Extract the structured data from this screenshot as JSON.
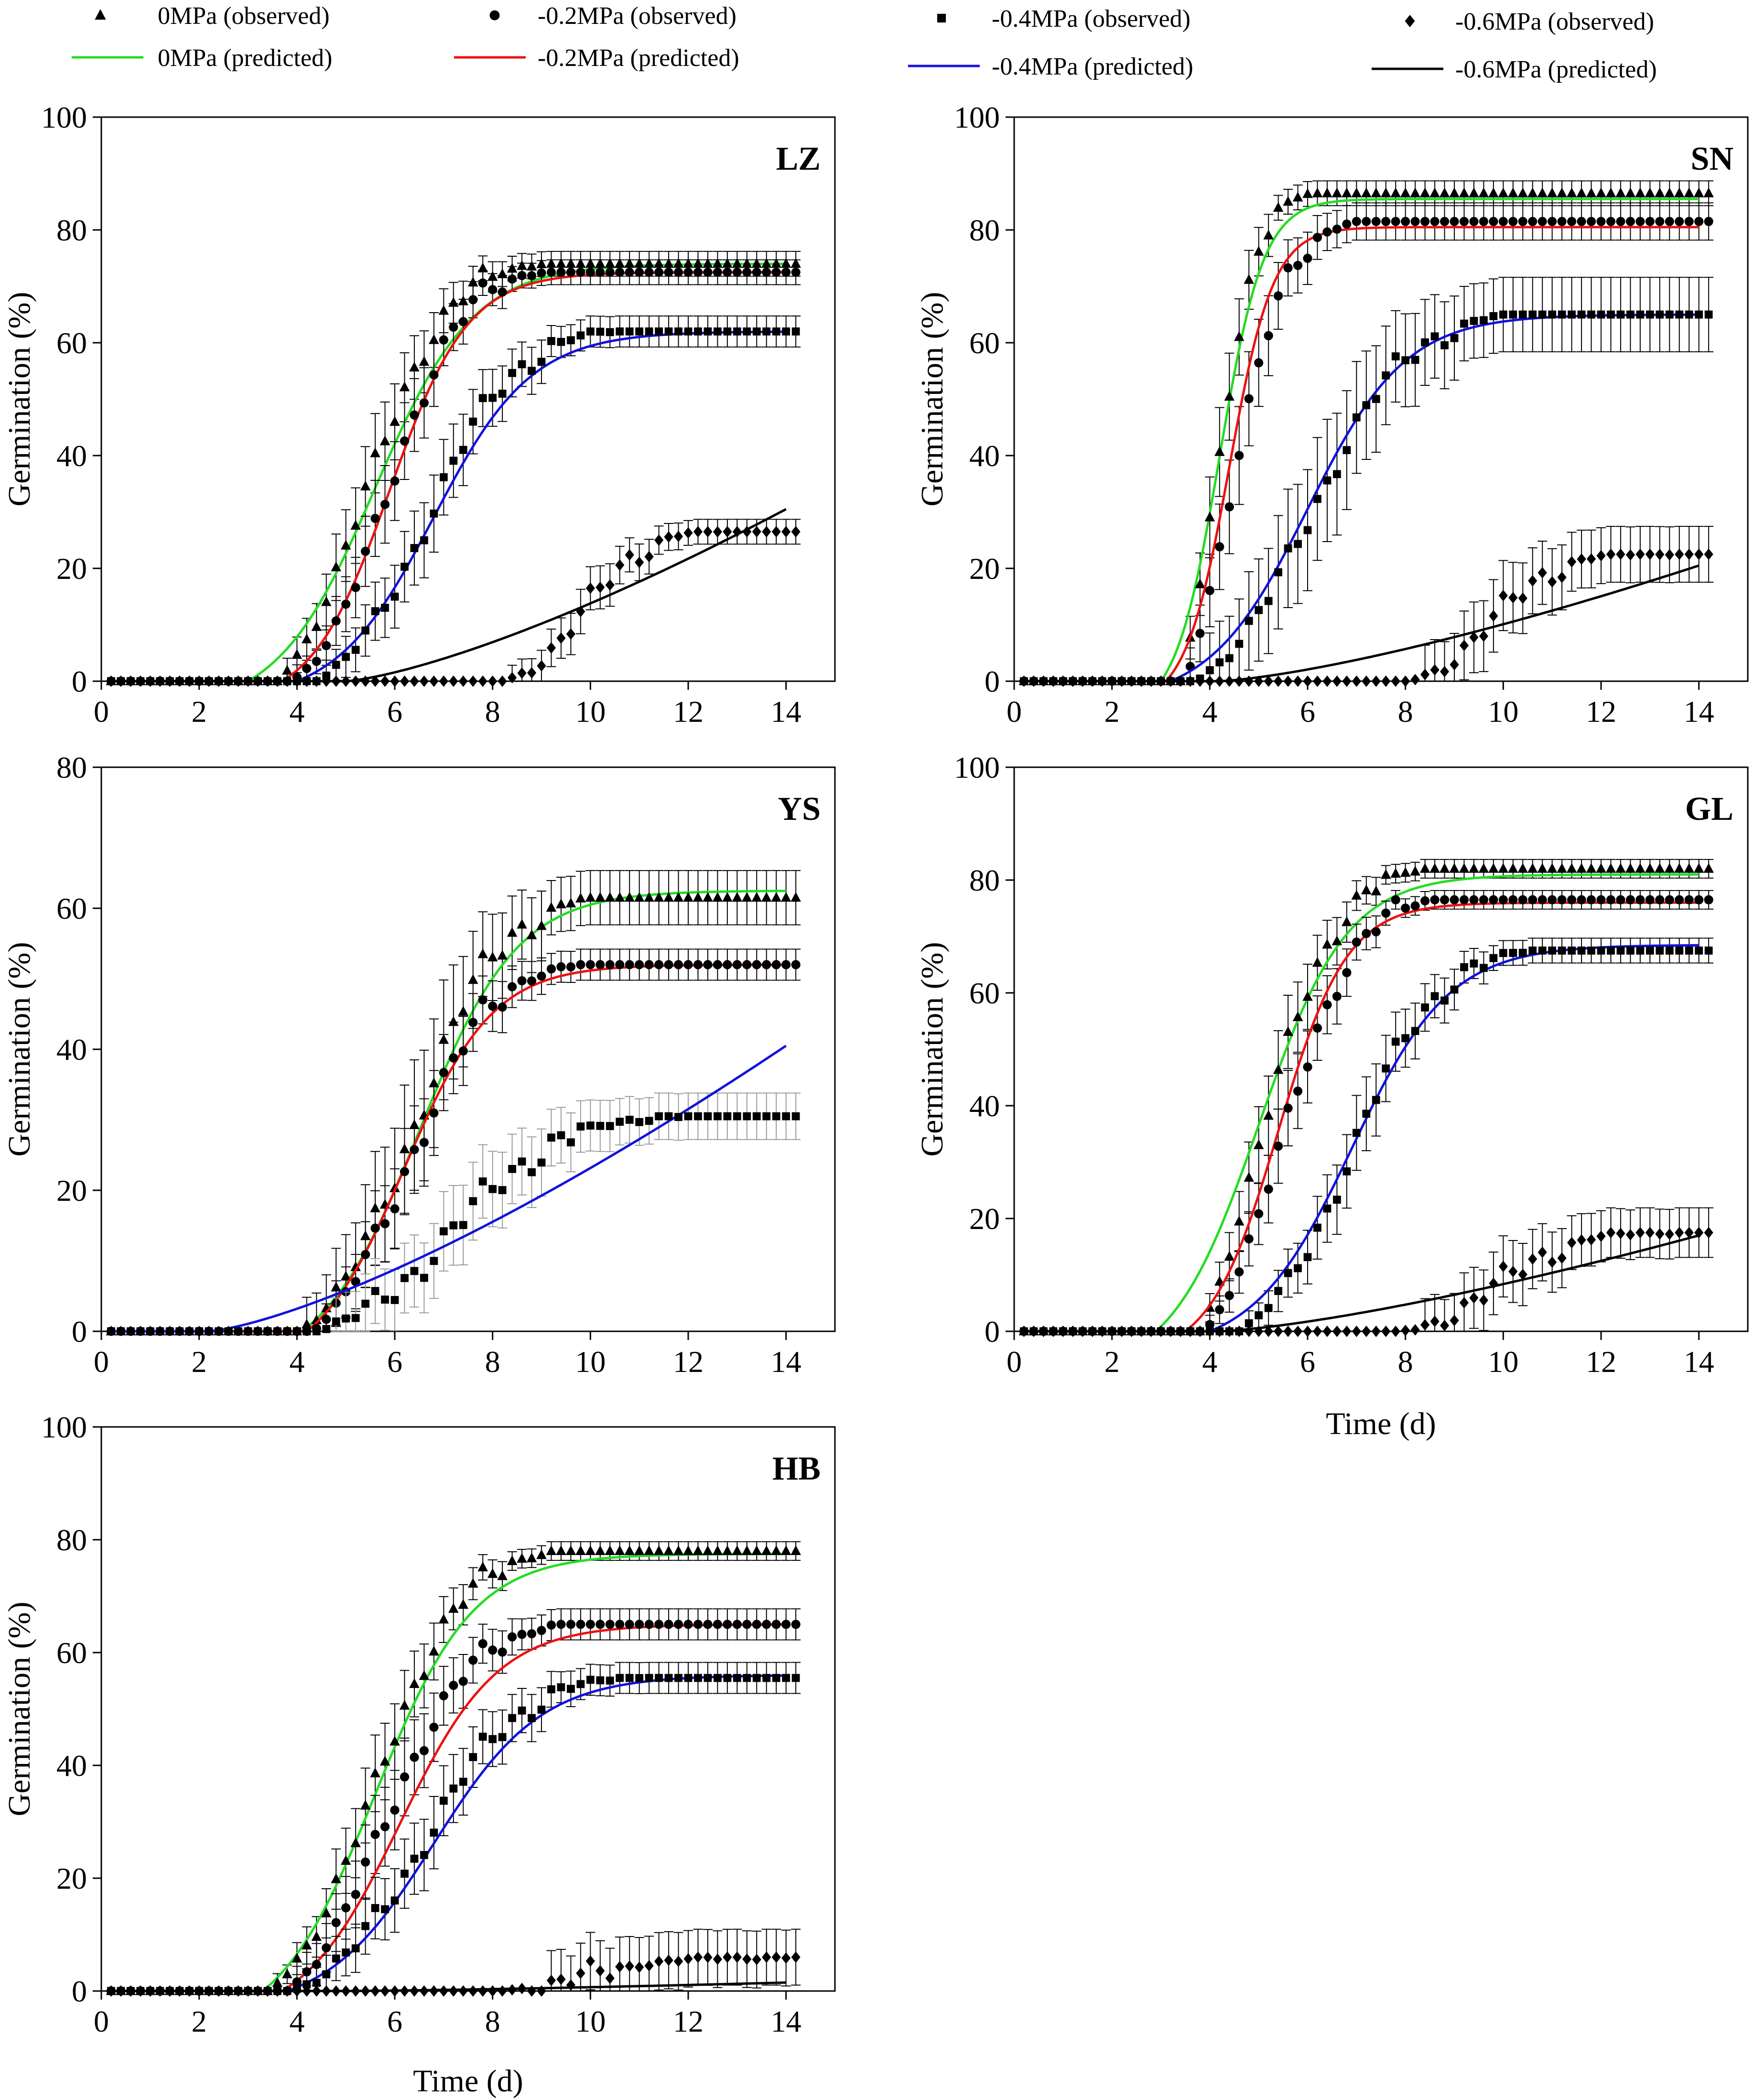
{
  "legend": {
    "items": [
      {
        "label": "0MPa (observed)",
        "kind": "marker",
        "marker": "triangle"
      },
      {
        "label": "-0.2MPa (observed)",
        "kind": "marker",
        "marker": "circle"
      },
      {
        "label": "-0.4MPa (observed)",
        "kind": "marker",
        "marker": "square"
      },
      {
        "label": "-0.6MPa (observed)",
        "kind": "marker",
        "marker": "diamond"
      },
      {
        "label": "0MPa (predicted)",
        "kind": "line",
        "color": "#22dd22"
      },
      {
        "label": "-0.2MPa (predicted)",
        "kind": "line",
        "color": "#ee1111"
      },
      {
        "label": "-0.4MPa (predicted)",
        "kind": "line",
        "color": "#1111dd"
      },
      {
        "label": "-0.6MPa (predicted)",
        "kind": "line",
        "color": "#000000"
      }
    ]
  },
  "colors": {
    "p0": "#22dd22",
    "p02": "#ee1111",
    "p04": "#1111dd",
    "p06": "#000000",
    "errorbar": "#000000",
    "errorbar_light": "#9a9a9a"
  },
  "chart_data": [
    {
      "type": "line",
      "panel": "LZ",
      "title": "LZ",
      "xlabel": "",
      "ylabel": "Germination (%)",
      "xlim": [
        0,
        15
      ],
      "ylim": [
        0,
        100
      ],
      "xticks": [
        "0",
        "2",
        "4",
        "6",
        "8",
        "10",
        "12",
        "14"
      ],
      "yticks": [
        "0",
        "20",
        "40",
        "60",
        "80",
        "100"
      ],
      "series": [
        {
          "name": "0MPa",
          "marker": "triangle",
          "color": "#22dd22",
          "plateau": 74,
          "final_err": 2,
          "onset": 3.6,
          "t50": 5.4,
          "scale": 0.85,
          "ext": 0.3,
          "pred_plateau": 74,
          "pred_onset": 3.0,
          "pred_t50": 5.6,
          "pred_scale": 1.0
        },
        {
          "name": "-0.2MPa",
          "marker": "circle",
          "color": "#ee1111",
          "plateau": 72.5,
          "final_err": 2,
          "onset": 3.9,
          "t50": 5.9,
          "scale": 0.75,
          "ext": 0.3,
          "pred_plateau": 72.5,
          "pred_onset": 3.7,
          "pred_t50": 5.9,
          "pred_scale": 0.8
        },
        {
          "name": "-0.4MPa",
          "marker": "square",
          "color": "#1111dd",
          "plateau": 62,
          "final_err": 2.5,
          "onset": 4.4,
          "t50": 6.7,
          "scale": 0.9,
          "ext": 0.3,
          "pred_plateau": 62,
          "pred_onset": 4.0,
          "pred_t50": 6.8,
          "pred_scale": 1.0
        },
        {
          "name": "-0.6MPa",
          "marker": "diamond",
          "color": "#000000",
          "plateau": 26.5,
          "final_err": 2,
          "onset": 8.2,
          "t50": 9.9,
          "scale": 0.6,
          "ext": 0.3,
          "pred_linear": true,
          "pred_onset": 5.0,
          "pred_end": 30.5
        }
      ]
    },
    {
      "type": "line",
      "panel": "SN",
      "title": "SN",
      "xlabel": "",
      "ylabel": "Germination (%)",
      "xlim": [
        0,
        15
      ],
      "ylim": [
        0,
        100
      ],
      "xticks": [
        "0",
        "2",
        "4",
        "6",
        "8",
        "10",
        "12",
        "14"
      ],
      "yticks": [
        "0",
        "20",
        "40",
        "60",
        "80",
        "100"
      ],
      "series": [
        {
          "name": "0MPa",
          "marker": "triangle",
          "color": "#22dd22",
          "plateau": 86.5,
          "final_err": 2,
          "onset": 3.4,
          "t50": 4.1,
          "scale": 0.45,
          "ext": 0.3,
          "pred_plateau": 85.5,
          "pred_onset": 3.0,
          "pred_t50": 4.2,
          "pred_scale": 0.45
        },
        {
          "name": "-0.2MPa",
          "marker": "circle",
          "color": "#ee1111",
          "plateau": 81.5,
          "final_err": 3,
          "onset": 3.5,
          "t50": 4.4,
          "scale": 0.6,
          "ext": 0.3,
          "pred_plateau": 80.5,
          "pred_onset": 3.1,
          "pred_t50": 4.4,
          "pred_scale": 0.45
        },
        {
          "name": "-0.4MPa",
          "marker": "square",
          "color": "#1111dd",
          "plateau": 65,
          "final_err": 6,
          "onset": 3.7,
          "t50": 6.1,
          "scale": 1.0,
          "ext": 0.3,
          "pred_plateau": 65,
          "pred_onset": 3.2,
          "pred_t50": 6.0,
          "pred_scale": 1.0
        },
        {
          "name": "-0.6MPa",
          "marker": "diamond",
          "color": "#000000",
          "plateau": 22.5,
          "final_err": 4.5,
          "onset": 8.0,
          "t50": 9.8,
          "scale": 0.65,
          "ext": 0.3,
          "pred_linear": true,
          "pred_onset": 4.2,
          "pred_end": 20.5
        }
      ]
    },
    {
      "type": "line",
      "panel": "YS",
      "title": "YS",
      "xlabel": "",
      "ylabel": "Germination (%)",
      "xlim": [
        0,
        15
      ],
      "ylim": [
        0,
        80
      ],
      "xticks": [
        "0",
        "2",
        "4",
        "6",
        "8",
        "10",
        "12",
        "14"
      ],
      "yticks": [
        "0",
        "20",
        "40",
        "60",
        "80"
      ],
      "series": [
        {
          "name": "0MPa",
          "marker": "triangle",
          "color": "#22dd22",
          "plateau": 61.5,
          "final_err": 3.5,
          "onset": 4.0,
          "t50": 6.4,
          "scale": 0.9,
          "ext": 0.4,
          "pred_plateau": 62.5,
          "pred_onset": 4.1,
          "pred_t50": 6.5,
          "pred_scale": 1.0
        },
        {
          "name": "-0.2MPa",
          "marker": "circle",
          "color": "#ee1111",
          "plateau": 52,
          "final_err": 2,
          "onset": 4.3,
          "t50": 6.3,
          "scale": 0.85,
          "ext": 0.35,
          "pred_plateau": 52,
          "pred_onset": 4.2,
          "pred_t50": 6.2,
          "pred_scale": 0.9
        },
        {
          "name": "-0.4MPa",
          "marker": "square",
          "color": "#1111dd",
          "plateau": 30.5,
          "final_err": 3,
          "onset": 4.4,
          "t50": 7.2,
          "scale": 1.1,
          "ext": 0.35,
          "light_err": true,
          "pred_linear": true,
          "pred_onset": 2.2,
          "pred_end": 40.5
        }
      ]
    },
    {
      "type": "line",
      "panel": "GL",
      "title": "GL",
      "xlabel": "Time (d)",
      "ylabel": "Germination (%)",
      "xlim": [
        0,
        15
      ],
      "ylim": [
        0,
        100
      ],
      "xticks": [
        "0",
        "2",
        "4",
        "6",
        "8",
        "10",
        "12",
        "14"
      ],
      "yticks": [
        "0",
        "20",
        "40",
        "60",
        "80",
        "100"
      ],
      "series": [
        {
          "name": "0MPa",
          "marker": "triangle",
          "color": "#22dd22",
          "plateau": 82,
          "final_err": 1.5,
          "onset": 3.8,
          "t50": 5.0,
          "scale": 0.8,
          "ext": 0.3,
          "pred_plateau": 81,
          "pred_onset": 2.9,
          "pred_t50": 5.0,
          "pred_scale": 0.9
        },
        {
          "name": "-0.2MPa",
          "marker": "circle",
          "color": "#ee1111",
          "plateau": 76.5,
          "final_err": 1.5,
          "onset": 3.9,
          "t50": 5.5,
          "scale": 0.75,
          "ext": 0.3,
          "pred_plateau": 76,
          "pred_onset": 3.5,
          "pred_t50": 5.4,
          "pred_scale": 0.7
        },
        {
          "name": "-0.4MPa",
          "marker": "square",
          "color": "#1111dd",
          "plateau": 67.5,
          "final_err": 2,
          "onset": 4.6,
          "t50": 6.9,
          "scale": 0.9,
          "ext": 0.3,
          "pred_plateau": 68.5,
          "pred_onset": 4.0,
          "pred_t50": 6.9,
          "pred_scale": 1.0
        },
        {
          "name": "-0.6MPa",
          "marker": "diamond",
          "color": "#000000",
          "plateau": 17.5,
          "final_err": 4,
          "onset": 7.9,
          "t50": 9.9,
          "scale": 0.75,
          "ext": 0.3,
          "pred_linear": true,
          "pred_onset": 4.2,
          "pred_end": 17
        }
      ]
    },
    {
      "type": "line",
      "panel": "HB",
      "title": "HB",
      "xlabel": "Time (d)",
      "ylabel": "Germination (%)",
      "xlim": [
        0,
        15
      ],
      "ylim": [
        0,
        100
      ],
      "xticks": [
        "0",
        "2",
        "4",
        "6",
        "8",
        "10",
        "12",
        "14"
      ],
      "yticks": [
        "0",
        "20",
        "40",
        "60",
        "80",
        "100"
      ],
      "series": [
        {
          "name": "0MPa",
          "marker": "triangle",
          "color": "#22dd22",
          "plateau": 78,
          "final_err": 1.5,
          "onset": 3.4,
          "t50": 5.6,
          "scale": 0.9,
          "ext": 0.3,
          "pred_plateau": 77.5,
          "pred_onset": 3.3,
          "pred_t50": 5.6,
          "pred_scale": 1.0
        },
        {
          "name": "-0.2MPa",
          "marker": "circle",
          "color": "#ee1111",
          "plateau": 65,
          "final_err": 2.5,
          "onset": 3.8,
          "t50": 5.8,
          "scale": 0.9,
          "ext": 0.3,
          "pred_plateau": 65,
          "pred_onset": 3.7,
          "pred_t50": 6.1,
          "pred_scale": 1.0
        },
        {
          "name": "-0.4MPa",
          "marker": "square",
          "color": "#1111dd",
          "plateau": 55.5,
          "final_err": 2.5,
          "onset": 3.9,
          "t50": 6.6,
          "scale": 1.0,
          "ext": 0.3,
          "pred_plateau": 56,
          "pred_onset": 3.8,
          "pred_t50": 6.8,
          "pred_scale": 1.1
        },
        {
          "name": "-0.6MPa",
          "marker": "diamond",
          "color": "#000000",
          "plateau": 6,
          "final_err": 4.5,
          "onset": 8.2,
          "t50": 10.0,
          "scale": 0.8,
          "ext": 0.3,
          "pred_linear": true,
          "pred_onset": 5.0,
          "pred_end": 1.5
        }
      ]
    }
  ]
}
